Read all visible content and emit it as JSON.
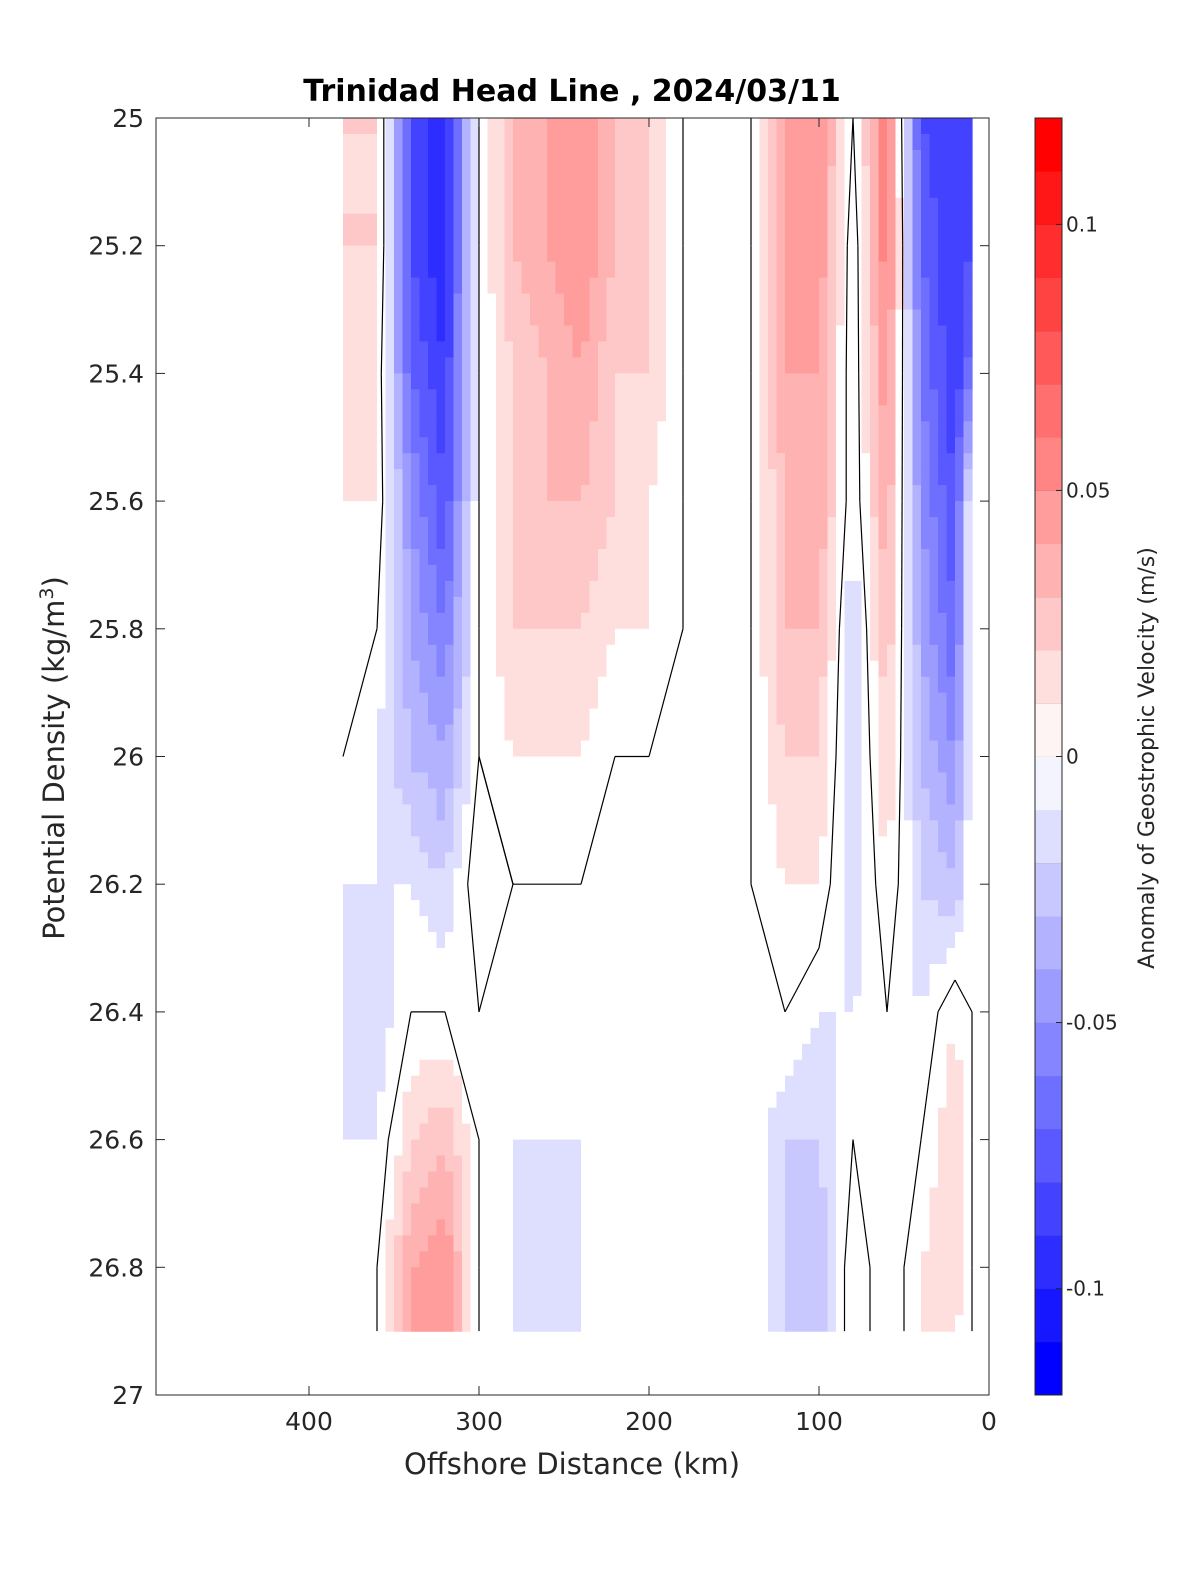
{
  "chart_data": {
    "type": "heatmap",
    "title": "Trinidad Head Line , 2024/03/11",
    "xlabel": "Offshore Distance (km)",
    "ylabel": "Potential Density (kg/m",
    "ylabel_sup": "3",
    "ylabel_close": ")",
    "colorbar_label": "Anomaly of Geostrophic Velocity (m/s)",
    "xlim": [
      490,
      0
    ],
    "ylim": [
      25,
      27
    ],
    "x_reversed": true,
    "y_reversed": true,
    "x_ticks": [
      400,
      300,
      200,
      100,
      0
    ],
    "x_tick_labels": [
      "400",
      "300",
      "200",
      "100",
      "0"
    ],
    "y_ticks": [
      25,
      25.2,
      25.4,
      25.6,
      25.8,
      26,
      26.2,
      26.4,
      26.6,
      26.8,
      27
    ],
    "y_tick_labels": [
      "25",
      "25.2",
      "25.4",
      "25.6",
      "25.8",
      "26",
      "26.2",
      "26.4",
      "26.6",
      "26.8",
      "27"
    ],
    "colorbar": {
      "clim": [
        -0.12,
        0.12
      ],
      "ticks": [
        -0.1,
        -0.05,
        0,
        0.05,
        0.1
      ],
      "tick_labels": [
        "-0.1",
        "-0.05",
        "0",
        "0.05",
        "0.1"
      ],
      "levels": 24,
      "negative_color": "#0000ff",
      "positive_color": "#ff0000",
      "zero_color": "#ffffff"
    },
    "data_extent": {
      "x": [
        380,
        10
      ],
      "density": [
        25,
        26.9
      ]
    },
    "x": [
      380,
      360,
      340,
      320,
      300,
      280,
      260,
      240,
      220,
      200,
      180,
      160,
      140,
      120,
      100,
      80,
      60,
      40,
      20,
      10
    ],
    "y": [
      25.0,
      25.2,
      25.4,
      25.6,
      25.8,
      26.0,
      26.2,
      26.4,
      26.6,
      26.8,
      26.9
    ],
    "z": [
      [
        0.02,
        0.02,
        -0.08,
        -0.1,
        0.0,
        0.03,
        0.04,
        0.05,
        0.03,
        0.02,
        0.0,
        0.0,
        0.0,
        0.04,
        0.05,
        0.0,
        0.06,
        -0.08,
        -0.09,
        -0.09
      ],
      [
        0.02,
        0.02,
        -0.08,
        -0.1,
        0.0,
        0.03,
        0.04,
        0.05,
        0.03,
        0.02,
        0.0,
        0.0,
        0.0,
        0.04,
        0.05,
        -0.01,
        0.06,
        -0.07,
        -0.09,
        -0.08
      ],
      [
        0.02,
        0.01,
        -0.07,
        -0.09,
        0.0,
        0.02,
        0.03,
        0.04,
        0.02,
        0.02,
        0.0,
        -0.01,
        0.0,
        0.04,
        0.04,
        -0.01,
        0.05,
        -0.06,
        -0.09,
        -0.06
      ],
      [
        0.01,
        0.01,
        -0.05,
        -0.08,
        0.0,
        0.02,
        0.03,
        0.03,
        0.02,
        0.01,
        0.0,
        -0.01,
        0.0,
        0.03,
        0.04,
        -0.01,
        0.04,
        -0.05,
        -0.08,
        0.0
      ],
      [
        0.01,
        0.0,
        -0.04,
        -0.06,
        0.0,
        0.02,
        0.02,
        0.02,
        0.01,
        0.01,
        0.0,
        0.0,
        0.0,
        0.03,
        0.03,
        -0.02,
        0.03,
        -0.04,
        -0.07,
        0.0
      ],
      [
        0.0,
        -0.01,
        -0.03,
        -0.04,
        0.0,
        0.01,
        0.01,
        0.01,
        0.0,
        0.0,
        0.0,
        0.0,
        0.0,
        0.02,
        0.02,
        -0.02,
        0.02,
        -0.03,
        -0.05,
        0.0
      ],
      [
        -0.01,
        -0.01,
        -0.01,
        -0.02,
        0.01,
        0.0,
        0.0,
        0.0,
        0.0,
        0.0,
        0.0,
        0.0,
        0.0,
        0.01,
        0.01,
        -0.02,
        0.01,
        -0.02,
        -0.03,
        0.0
      ],
      [
        -0.01,
        -0.02,
        0.0,
        0.0,
        0.0,
        0.0,
        0.0,
        0.0,
        0.0,
        0.0,
        0.0,
        0.0,
        0.0,
        0.0,
        -0.01,
        -0.01,
        0.0,
        -0.01,
        0.01,
        0.0
      ],
      [
        -0.01,
        -0.01,
        0.02,
        0.03,
        0.0,
        -0.01,
        -0.01,
        -0.01,
        0.0,
        0.0,
        0.0,
        0.0,
        0.0,
        -0.02,
        -0.02,
        0.0,
        -0.01,
        0.0,
        0.02,
        0.0
      ],
      [
        -0.01,
        0.0,
        0.04,
        0.05,
        0.0,
        -0.01,
        -0.02,
        -0.01,
        0.0,
        0.0,
        0.0,
        0.0,
        0.0,
        -0.02,
        -0.03,
        0.01,
        -0.01,
        0.01,
        0.02,
        0.0
      ],
      [
        -0.01,
        0.0,
        0.04,
        0.05,
        0.0,
        -0.01,
        -0.02,
        -0.01,
        0.0,
        0.0,
        0.0,
        0.0,
        0.0,
        -0.02,
        -0.03,
        0.01,
        -0.01,
        0.01,
        0.01,
        0.0
      ]
    ],
    "zero_contour": true,
    "grid": false
  }
}
